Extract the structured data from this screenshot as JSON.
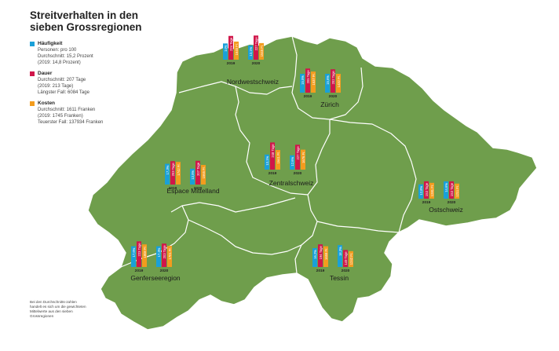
{
  "title": "Streitverhalten in den sieben Grossregionen",
  "colors": {
    "map_fill": "#6f9e4c",
    "map_border": "#ffffff",
    "haeufigkeit": "#1aa0d8",
    "dauer": "#d0164a",
    "kosten": "#f39c1e"
  },
  "legend": [
    {
      "key": "haeufigkeit",
      "title": "Häufigkeit",
      "lines": [
        "Personen: pro 100",
        "Durchschnitt: 15,2 Prozent",
        "(2019: 14,8 Prozent)"
      ]
    },
    {
      "key": "dauer",
      "title": "Dauer",
      "lines": [
        "Durchschnitt: 207 Tage",
        "(2019: 213 Tage)",
        "Längster Fall: 6084 Tage"
      ]
    },
    {
      "key": "kosten",
      "title": "Kosten",
      "lines": [
        "Durchschnitt: 1611 Franken",
        "(2019: 1745 Franken)",
        "Teuerster Fall: 137934 Franken"
      ]
    }
  ],
  "note": "Bei den Durchschnitts-zahlen handelt es sich um die gewichteten Mittelwerte aus den sieben Grossregionen",
  "chart_data": {
    "type": "bar",
    "series": [
      "Häufigkeit",
      "Dauer",
      "Kosten"
    ],
    "years": [
      "2019",
      "2020"
    ],
    "regions": [
      {
        "name": "Nordwestschweiz",
        "values": {
          "2019": {
            "haeufigkeit": "14%",
            "dauer": "224 Tage",
            "kosten": "1645 Fr."
          },
          "2020": {
            "haeufigkeit": "13,1%",
            "dauer": "227 Tage",
            "kosten": "1545 Fr."
          }
        },
        "bars": {
          "2019": [
            0.43,
            0.63,
            0.48
          ],
          "2020": [
            0.38,
            0.64,
            0.44
          ]
        }
      },
      {
        "name": "Zürich",
        "values": {
          "2019": {
            "haeufigkeit": "15,5%",
            "dauer": "205 Tage",
            "kosten": "1537 Fr."
          },
          "2020": {
            "haeufigkeit": "15,6%",
            "dauer": "202 Tage",
            "kosten": "1432 Fr."
          }
        },
        "bars": {
          "2019": [
            0.5,
            0.64,
            0.56
          ],
          "2020": [
            0.5,
            0.62,
            0.5
          ]
        }
      },
      {
        "name": "Espace Mittelland",
        "values": {
          "2019": {
            "haeufigkeit": "17,3%",
            "dauer": "203 Tage",
            "kosten": "1742 Fr."
          },
          "2020": {
            "haeufigkeit": "13,5%",
            "dauer": "207 Tage",
            "kosten": "1565 Fr."
          }
        },
        "bars": {
          "2019": [
            0.55,
            0.62,
            0.6
          ],
          "2020": [
            0.42,
            0.63,
            0.52
          ]
        }
      },
      {
        "name": "Zentralschweiz",
        "values": {
          "2019": {
            "haeufigkeit": "13,1%",
            "dauer": "248 Tage",
            "kosten": "1641 Fr."
          },
          "2020": {
            "haeufigkeit": "12,6%",
            "dauer": "227 Tage",
            "kosten": "1676 Fr."
          }
        },
        "bars": {
          "2019": [
            0.4,
            0.72,
            0.52
          ],
          "2020": [
            0.38,
            0.66,
            0.53
          ]
        }
      },
      {
        "name": "Ostschweiz",
        "values": {
          "2019": {
            "haeufigkeit": "12,8%",
            "dauer": "153 Tage",
            "kosten": "1281 Fr."
          },
          "2020": {
            "haeufigkeit": "14,6%",
            "dauer": "153 Tage",
            "kosten": "1211 Fr."
          }
        },
        "bars": {
          "2019": [
            0.38,
            0.46,
            0.42
          ],
          "2020": [
            0.46,
            0.46,
            0.4
          ]
        }
      },
      {
        "name": "Genferseeregion",
        "values": {
          "2019": {
            "haeufigkeit": "17,6%",
            "dauer": "223 Tage",
            "kosten": "1808 Fr."
          },
          "2020": {
            "haeufigkeit": "17,3%",
            "dauer": "203 Tage",
            "kosten": "1701 Fr."
          }
        },
        "bars": {
          "2019": [
            0.55,
            0.68,
            0.6
          ],
          "2020": [
            0.55,
            0.62,
            0.56
          ]
        }
      },
      {
        "name": "Tessin",
        "values": {
          "2019": {
            "haeufigkeit": "16,2%",
            "dauer": "194 Tage",
            "kosten": "1659 Fr."
          },
          "2020": {
            "haeufigkeit": "18,3%",
            "dauer": "149 Tage",
            "kosten": "1242 Fr."
          }
        },
        "bars": {
          "2019": [
            0.5,
            0.6,
            0.55
          ],
          "2020": [
            0.58,
            0.45,
            0.42
          ]
        }
      }
    ]
  }
}
